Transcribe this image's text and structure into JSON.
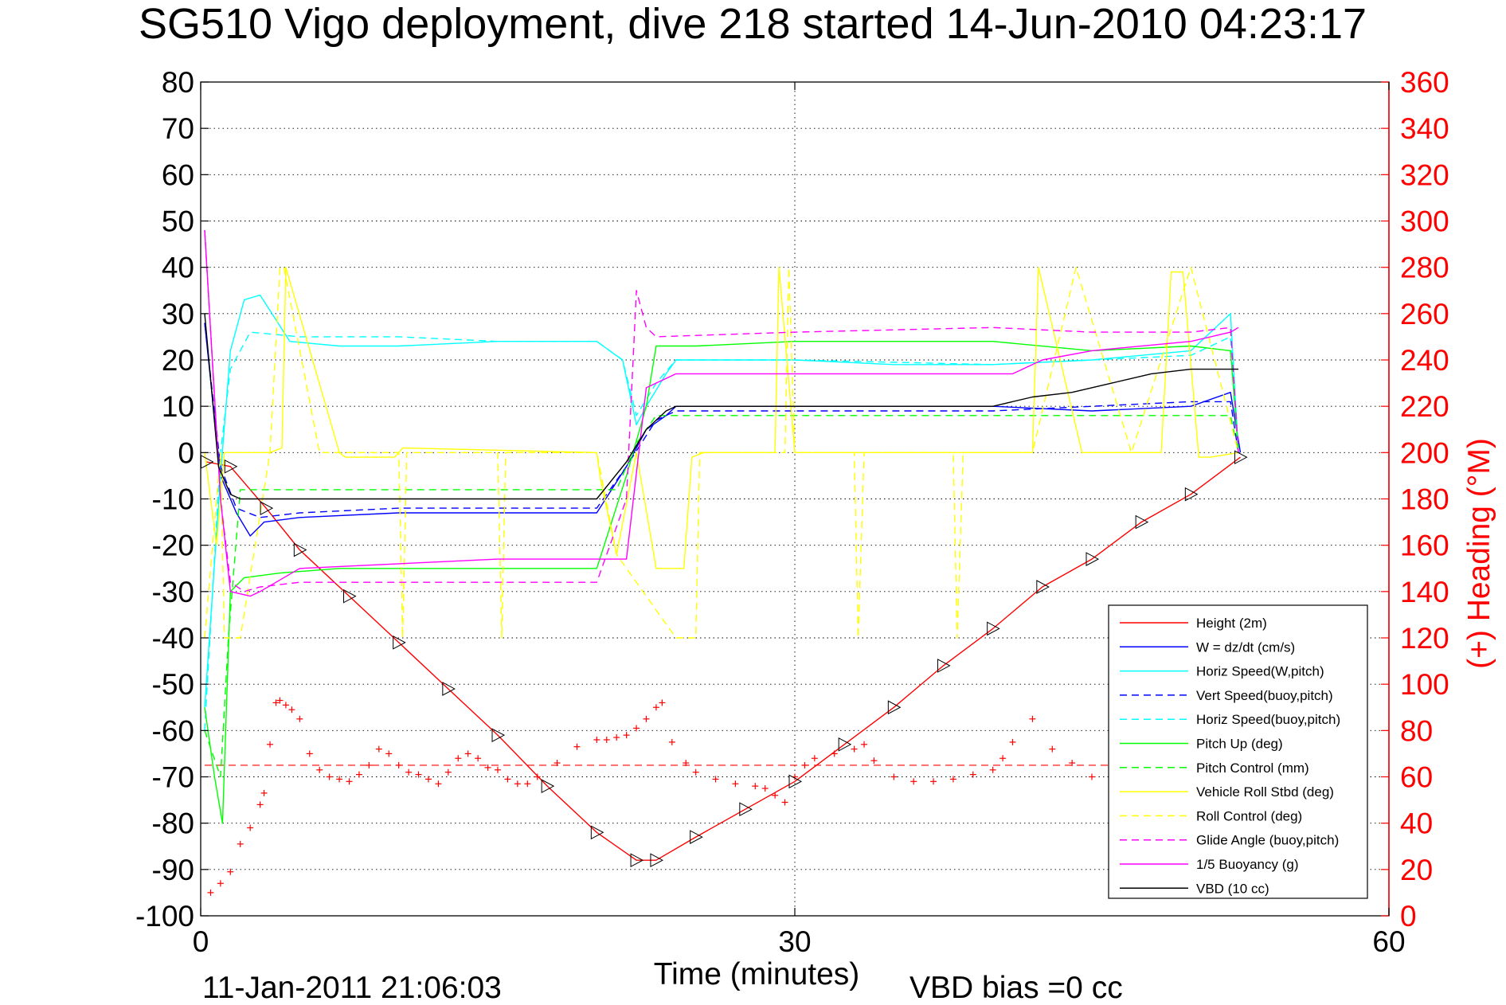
{
  "chart_data": {
    "type": "line",
    "title": "SG510 Vigo deployment, dive 218 started 14-Jun-2010 04:23:17",
    "xlabel": "Time (minutes)",
    "ylabel_right": "(+) Heading (°M)",
    "xlim": [
      0,
      60
    ],
    "ylim_left": [
      -100,
      80
    ],
    "ylim_right": [
      0,
      360
    ],
    "xticks": [
      "0",
      "30",
      "60"
    ],
    "yticks_left": [
      "80",
      "70",
      "60",
      "50",
      "40",
      "30",
      "20",
      "10",
      "0",
      "-10",
      "-20",
      "-30",
      "-40",
      "-50",
      "-60",
      "-70",
      "-80",
      "-90",
      "-100"
    ],
    "yticks_right": [
      "360",
      "340",
      "320",
      "300",
      "280",
      "260",
      "240",
      "220",
      "200",
      "180",
      "160",
      "140",
      "120",
      "100",
      "80",
      "60",
      "40",
      "20",
      "0"
    ],
    "grid": "dotted at x=30 and every y tick",
    "legend_position": "lower-right",
    "footer_left": "11-Jan-2011 21:06:03",
    "footer_right": "VBD bias =0 cc",
    "colors": {
      "red": "#ff0000",
      "blue": "#0000ff",
      "cyan": "#00ffff",
      "green": "#00ff00",
      "yellow": "#ffff00",
      "magenta": "#ff00ff",
      "black": "#000000"
    },
    "series": [
      {
        "name": "Height (2m)",
        "color": "#ff0000",
        "dash": "solid",
        "x": [
          0.3,
          1.5,
          3.3,
          5,
          7.5,
          10,
          12.5,
          15,
          17.5,
          20,
          22,
          23,
          25,
          27.5,
          30,
          32.5,
          35,
          37.5,
          40,
          42.5,
          45,
          47.5,
          50,
          52.5
        ],
        "y": [
          -2,
          -3,
          -12,
          -21,
          -31,
          -41,
          -51,
          -61,
          -72,
          -82,
          -88,
          -88,
          -83,
          -77,
          -71,
          -63,
          -55,
          -46,
          -38,
          -29,
          -23,
          -15,
          -9,
          -1
        ]
      },
      {
        "name": "W = dz/dt (cm/s)",
        "color": "#0000ff",
        "dash": "solid",
        "x": [
          0.2,
          1,
          1.8,
          2.5,
          3.2,
          5,
          10,
          15,
          20,
          21.5,
          22.5,
          23.5,
          24,
          30,
          40,
          45,
          50,
          52,
          52.5
        ],
        "y": [
          28,
          -5,
          -13,
          -18,
          -15,
          -14,
          -13,
          -13,
          -13,
          -3,
          5,
          8,
          10,
          10,
          10,
          9,
          10,
          13,
          0
        ]
      },
      {
        "name": "Horiz Speed(W,pitch)",
        "color": "#00ffff",
        "dash": "solid",
        "x": [
          0.2,
          1,
          1.5,
          2.2,
          3,
          4.5,
          7,
          10,
          15,
          20,
          21.3,
          22,
          22.5,
          23.5,
          24,
          27,
          30,
          35,
          40,
          45,
          50,
          52,
          52.4
        ],
        "y": [
          -55,
          -5,
          22,
          33,
          34,
          24,
          23,
          23,
          24,
          24,
          20,
          6,
          10,
          17,
          20,
          20,
          20,
          19,
          19,
          20,
          22,
          30,
          0
        ]
      },
      {
        "name": "Vert Speed(buoy,pitch)",
        "color": "#0000ff",
        "dash": "dashed",
        "x": [
          0.2,
          1,
          1.8,
          3,
          5,
          10,
          15,
          20,
          21.5,
          23,
          24,
          30,
          40,
          45,
          50,
          52,
          52.4
        ],
        "y": [
          28,
          -3,
          -12,
          -14,
          -13,
          -12,
          -12,
          -12,
          -3,
          7,
          9,
          9,
          9,
          10,
          11,
          11,
          0
        ]
      },
      {
        "name": "Horiz Speed(buoy,pitch)",
        "color": "#00ffff",
        "dash": "dashed",
        "x": [
          0.2,
          1,
          1.5,
          2.5,
          5,
          10,
          15,
          20,
          21.3,
          22,
          23,
          24,
          30,
          40,
          45,
          50,
          52,
          52.4
        ],
        "y": [
          -60,
          0,
          18,
          26,
          25,
          25,
          24,
          24,
          20,
          8,
          15,
          20,
          20,
          19,
          20,
          21,
          25,
          0
        ]
      },
      {
        "name": "Pitch Up (deg)",
        "color": "#00ff00",
        "dash": "solid",
        "x": [
          0.2,
          0.7,
          1.1,
          1.5,
          2.2,
          4,
          7,
          10,
          15,
          20,
          21.5,
          22.5,
          23,
          25,
          30,
          35,
          40,
          45,
          50,
          52,
          52.4
        ],
        "y": [
          -55,
          -70,
          -80,
          -30,
          -27,
          -26,
          -25,
          -25,
          -25,
          -25,
          -5,
          10,
          23,
          23,
          24,
          24,
          24,
          22,
          23,
          22,
          0
        ]
      },
      {
        "name": "Pitch Control (mm)",
        "color": "#00ff00",
        "dash": "dashed",
        "x": [
          0.2,
          1,
          1.4,
          2,
          5,
          10,
          15,
          20,
          21,
          22,
          23,
          25,
          30,
          40,
          45,
          50,
          52,
          52.4
        ],
        "y": [
          -60,
          -70,
          -40,
          -8,
          -8,
          -8,
          -8,
          -8,
          -8,
          2,
          8,
          8,
          8,
          8,
          8,
          8,
          8,
          0
        ]
      },
      {
        "name": "Vehicle Roll Stbd (deg)",
        "color": "#ffff00",
        "dash": "solid",
        "x": [
          0.2,
          0.8,
          1.2,
          3.5,
          4.1,
          4.3,
          7,
          7.3,
          7.5,
          9.8,
          10.2,
          20,
          20.2,
          21,
          22,
          23,
          24.4,
          24.8,
          25.4,
          29,
          29.2,
          30,
          35,
          40,
          42,
          42.3,
          44.5,
          46,
          47,
          48.5,
          49,
          49.6,
          50.4,
          51,
          52.4
        ],
        "y": [
          0,
          -20,
          0,
          0,
          1,
          40,
          0,
          -1,
          -1,
          -1,
          1,
          0,
          -6,
          -22,
          0,
          -25,
          -25,
          -1,
          0,
          0,
          40,
          0,
          0,
          0,
          0,
          40,
          0,
          0,
          0,
          0,
          39,
          39,
          -1,
          -1,
          0
        ]
      },
      {
        "name": "Roll Control (deg)",
        "color": "#ffff00",
        "dash": "dashed",
        "x": [
          0.2,
          1,
          1.2,
          2,
          3.5,
          4,
          4.2,
          6,
          7.5,
          10,
          10.2,
          10.4,
          11,
          15,
          15.2,
          15.4,
          16,
          20,
          21,
          24,
          25,
          25.2,
          29.5,
          29.7,
          30,
          33,
          33.2,
          33.5,
          38,
          38.2,
          38.5,
          42,
          44.2,
          47,
          50,
          52.4
        ],
        "y": [
          -40,
          0,
          -40,
          -40,
          0,
          40,
          40,
          0,
          0,
          0,
          -40,
          0,
          0,
          0,
          -40,
          0,
          0,
          0,
          -22,
          -40,
          -40,
          0,
          0,
          40,
          0,
          0,
          -40,
          0,
          0,
          -40,
          0,
          0,
          40,
          0,
          40,
          0
        ]
      },
      {
        "name": "Glide Angle (buoy,pitch)",
        "color": "#ff00ff",
        "dash": "dashed",
        "x": [
          0.2,
          1,
          1.5,
          2.2,
          3,
          5,
          10,
          15,
          20,
          21.5,
          22,
          22.5,
          23,
          30,
          40,
          45,
          50,
          52,
          52.4
        ],
        "y": [
          48,
          -10,
          -28,
          -30,
          -29,
          -28,
          -28,
          -28,
          -28,
          -10,
          35,
          27,
          25,
          26,
          27,
          26,
          26,
          27,
          0
        ]
      },
      {
        "name": "1/5 Buoyancy (g)",
        "color": "#ff00ff",
        "dash": "solid",
        "x": [
          0.2,
          1,
          1.5,
          2.5,
          3,
          5,
          10,
          15,
          20,
          21.5,
          22.5,
          24,
          30,
          40,
          41,
          42.5,
          45,
          50,
          52,
          52.4
        ],
        "y": [
          48,
          -10,
          -30,
          -31,
          -30,
          -25,
          -24,
          -23,
          -23,
          -23,
          14,
          17,
          17,
          17,
          17,
          20,
          22,
          24,
          26,
          27
        ]
      },
      {
        "name": "VBD (10 cc)",
        "color": "#000000",
        "dash": "solid",
        "x": [
          0.2,
          0.9,
          1.5,
          2,
          5,
          10,
          15,
          20,
          21.5,
          22.5,
          23.5,
          24,
          30,
          40,
          42,
          44,
          46,
          48,
          50,
          52.4
        ],
        "y": [
          30,
          -3,
          -9,
          -10,
          -10,
          -10,
          -10,
          -10,
          -2,
          5,
          9,
          10,
          10,
          10,
          12,
          13,
          15,
          17,
          18,
          18
        ]
      }
    ],
    "heading": {
      "name": "Heading",
      "color": "#ff0000",
      "marker": "+",
      "units": "°M",
      "mean": 65,
      "x": [
        0.5,
        1,
        1.5,
        2,
        2.5,
        3,
        3.2,
        3.5,
        3.8,
        4,
        4.3,
        4.6,
        5,
        5.5,
        6,
        6.5,
        7,
        7.5,
        8,
        8.5,
        9,
        9.5,
        10,
        10.5,
        11,
        11.5,
        12,
        12.5,
        13,
        13.5,
        14,
        14.5,
        15,
        15.5,
        16,
        16.5,
        17,
        18,
        19,
        20,
        20.5,
        21,
        21.5,
        22,
        22.5,
        23,
        23.3,
        23.8,
        24.5,
        25,
        26,
        27,
        28,
        28.5,
        29,
        29.5,
        30,
        30.5,
        31,
        32,
        33,
        33.5,
        34,
        35,
        36,
        37,
        38,
        39,
        40,
        40.5,
        41,
        42,
        43,
        44,
        45,
        46,
        47,
        48,
        49,
        50,
        51,
        52
      ],
      "y": [
        10,
        14,
        19,
        31,
        38,
        48,
        53,
        74,
        92,
        93,
        91,
        89,
        85,
        70,
        63,
        60,
        59,
        58,
        61,
        65,
        72,
        70,
        65,
        62,
        61,
        59,
        57,
        62,
        68,
        70,
        68,
        64,
        63,
        59,
        57,
        57,
        60,
        66,
        73,
        76,
        76,
        77,
        78,
        81,
        85,
        90,
        92,
        75,
        66,
        62,
        59,
        57,
        56,
        55,
        52,
        49,
        60,
        65,
        68,
        70,
        72,
        74,
        67,
        60,
        58,
        58,
        59,
        61,
        63,
        68,
        75,
        85,
        72,
        66,
        60,
        63,
        60,
        58,
        59,
        61,
        60,
        62
      ]
    },
    "ticks_height_marker": "triangle"
  }
}
